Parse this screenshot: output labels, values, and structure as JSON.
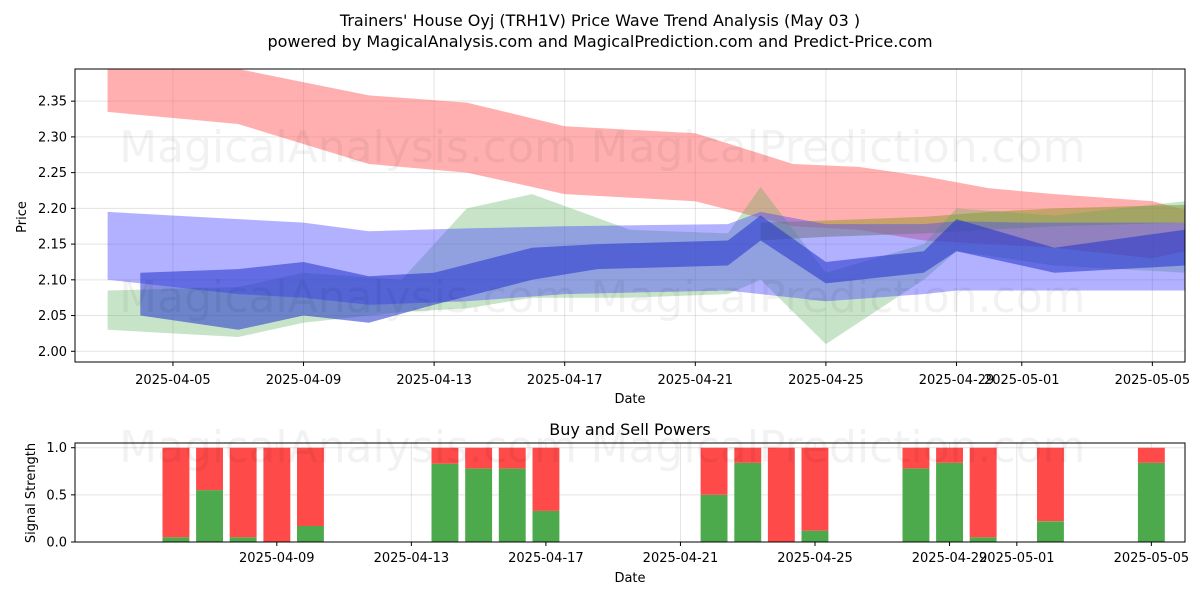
{
  "chart_data": [
    {
      "type": "area",
      "title": "Trainers' House Oyj (TRH1V) Price Wave Trend Analysis (May 03 )",
      "subtitle": "powered by MagicalAnalysis.com and MagicalPrediction.com and Predict-Price.com",
      "xlabel": "Date",
      "ylabel": "Price",
      "x_ticks": [
        "2025-04-05",
        "2025-04-09",
        "2025-04-13",
        "2025-04-17",
        "2025-04-21",
        "2025-04-25",
        "2025-04-29",
        "2025-05-01",
        "2025-05-05"
      ],
      "y_ticks": [
        "2.00",
        "2.05",
        "2.10",
        "2.15",
        "2.20",
        "2.25",
        "2.30",
        "2.35"
      ],
      "xlim": [
        "2025-04-02",
        "2025-05-06"
      ],
      "ylim": [
        1.985,
        2.395
      ],
      "grid": true,
      "series": [
        {
          "name": "red trend band",
          "color": "#ff6666",
          "x": [
            "2025-04-03",
            "2025-04-07",
            "2025-04-11",
            "2025-04-14",
            "2025-04-17",
            "2025-04-21",
            "2025-04-24",
            "2025-04-26",
            "2025-04-28",
            "2025-04-30",
            "2025-05-02",
            "2025-05-05",
            "2025-05-06"
          ],
          "lower": [
            2.335,
            2.318,
            2.262,
            2.25,
            2.22,
            2.21,
            2.175,
            2.17,
            2.155,
            2.15,
            2.145,
            2.13,
            2.14
          ],
          "upper": [
            2.395,
            2.395,
            2.358,
            2.348,
            2.315,
            2.305,
            2.262,
            2.258,
            2.245,
            2.228,
            2.22,
            2.21,
            2.198
          ]
        },
        {
          "name": "olive trend band",
          "color": "#999933",
          "x": [
            "2025-04-23",
            "2025-04-25",
            "2025-04-28",
            "2025-04-30",
            "2025-05-02",
            "2025-05-06"
          ],
          "lower": [
            2.155,
            2.16,
            2.165,
            2.17,
            2.175,
            2.18
          ],
          "upper": [
            2.18,
            2.183,
            2.188,
            2.195,
            2.2,
            2.205
          ]
        },
        {
          "name": "green wave band",
          "color": "#55aa55",
          "x": [
            "2025-04-03",
            "2025-04-07",
            "2025-04-09",
            "2025-04-12",
            "2025-04-14",
            "2025-04-16",
            "2025-04-19",
            "2025-04-22",
            "2025-04-23",
            "2025-04-25",
            "2025-04-28",
            "2025-04-29",
            "2025-05-02",
            "2025-05-06"
          ],
          "lower": [
            2.03,
            2.02,
            2.04,
            2.055,
            2.06,
            2.075,
            2.075,
            2.08,
            2.1,
            2.01,
            2.1,
            2.14,
            2.12,
            2.11
          ],
          "upper": [
            2.085,
            2.09,
            2.11,
            2.1,
            2.2,
            2.22,
            2.17,
            2.165,
            2.23,
            2.11,
            2.15,
            2.2,
            2.19,
            2.21
          ]
        },
        {
          "name": "blue wave band",
          "color": "#4444ff",
          "x": [
            "2025-04-03",
            "2025-04-07",
            "2025-04-09",
            "2025-04-11",
            "2025-04-14",
            "2025-04-17",
            "2025-04-22",
            "2025-04-23",
            "2025-04-25",
            "2025-04-28",
            "2025-04-29",
            "2025-05-01",
            "2025-05-06"
          ],
          "lower": [
            2.1,
            2.08,
            2.075,
            2.065,
            2.07,
            2.08,
            2.085,
            2.08,
            2.07,
            2.08,
            2.085,
            2.085,
            2.085
          ],
          "upper": [
            2.195,
            2.185,
            2.18,
            2.168,
            2.172,
            2.175,
            2.178,
            2.195,
            2.178,
            2.178,
            2.182,
            2.18,
            2.18
          ]
        },
        {
          "name": "blue wave center",
          "color": "#2233cc",
          "x": [
            "2025-04-04",
            "2025-04-07",
            "2025-04-09",
            "2025-04-11",
            "2025-04-13",
            "2025-04-16",
            "2025-04-18",
            "2025-04-22",
            "2025-04-23",
            "2025-04-25",
            "2025-04-28",
            "2025-04-29",
            "2025-05-02",
            "2025-05-06"
          ],
          "lower": [
            2.05,
            2.03,
            2.05,
            2.04,
            2.065,
            2.1,
            2.115,
            2.12,
            2.155,
            2.095,
            2.11,
            2.14,
            2.11,
            2.12
          ],
          "upper": [
            2.11,
            2.115,
            2.125,
            2.105,
            2.11,
            2.145,
            2.15,
            2.155,
            2.19,
            2.125,
            2.14,
            2.185,
            2.145,
            2.17
          ]
        }
      ]
    },
    {
      "type": "bar",
      "title": "Buy and Sell Powers",
      "xlabel": "Date",
      "ylabel": "Signal Strength",
      "x_ticks": [
        "2025-04-09",
        "2025-04-13",
        "2025-04-17",
        "2025-04-21",
        "2025-04-25",
        "2025-04-29",
        "2025-05-01",
        "2025-05-05"
      ],
      "y_ticks": [
        "0.0",
        "0.5",
        "1.0"
      ],
      "xlim": [
        "2025-04-03",
        "2025-05-06"
      ],
      "ylim": [
        0,
        1.05
      ],
      "grid": true,
      "categories": [
        "2025-04-06",
        "2025-04-07",
        "2025-04-08",
        "2025-04-09",
        "2025-04-10",
        "2025-04-14",
        "2025-04-15",
        "2025-04-16",
        "2025-04-17",
        "2025-04-22",
        "2025-04-23",
        "2025-04-24",
        "2025-04-25",
        "2025-04-28",
        "2025-04-29",
        "2025-04-30",
        "2025-05-02",
        "2025-05-05"
      ],
      "series": [
        {
          "name": "Buy",
          "color": "#4caa4c",
          "values": [
            0.05,
            0.55,
            0.05,
            0.0,
            0.17,
            0.83,
            0.78,
            0.78,
            0.33,
            0.5,
            0.84,
            0.0,
            0.12,
            0.78,
            0.84,
            0.05,
            0.22,
            0.84
          ]
        },
        {
          "name": "Sell",
          "color": "#ff4a4a",
          "values": [
            0.95,
            0.45,
            0.95,
            1.0,
            0.83,
            0.17,
            0.22,
            0.22,
            0.67,
            0.5,
            0.16,
            1.0,
            0.88,
            0.22,
            0.16,
            0.95,
            0.78,
            0.16
          ]
        }
      ]
    }
  ],
  "watermarks": [
    "MagicalAnalysis.com",
    "MagicalPrediction.com"
  ]
}
